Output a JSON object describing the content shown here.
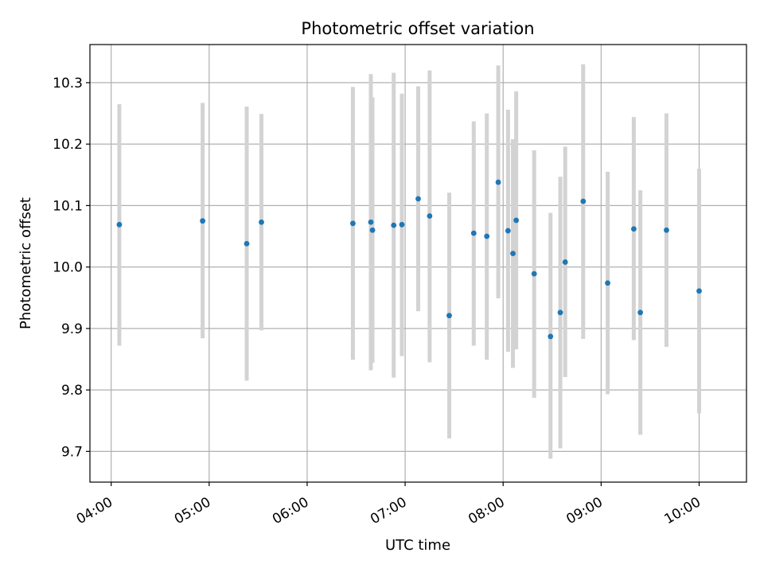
{
  "chart_data": {
    "type": "scatter",
    "title": "Photometric offset variation",
    "xlabel": "UTC time",
    "ylabel": "Photometric offset",
    "x_ticks": [
      "04:00",
      "05:00",
      "06:00",
      "07:00",
      "08:00",
      "09:00",
      "10:00"
    ],
    "y_ticks": [
      "9.7",
      "9.8",
      "9.9",
      "10.0",
      "10.1",
      "10.2",
      "10.3"
    ],
    "xlim": [
      "03:47",
      "10:29"
    ],
    "ylim": [
      9.65,
      10.362
    ],
    "grid": true,
    "marker_color": "#1f77b4",
    "errorbar_color": "#d3d3d3",
    "points": [
      {
        "time": "04:05",
        "y": 10.069,
        "low": 9.872,
        "high": 10.265
      },
      {
        "time": "04:56",
        "y": 10.075,
        "low": 9.884,
        "high": 10.267
      },
      {
        "time": "05:23",
        "y": 10.038,
        "low": 9.815,
        "high": 10.261
      },
      {
        "time": "05:32",
        "y": 10.073,
        "low": 9.897,
        "high": 10.249
      },
      {
        "time": "06:28",
        "y": 10.071,
        "low": 9.849,
        "high": 10.293
      },
      {
        "time": "06:39",
        "y": 10.073,
        "low": 9.832,
        "high": 10.314
      },
      {
        "time": "06:40",
        "y": 10.06,
        "low": 9.844,
        "high": 10.276
      },
      {
        "time": "06:53",
        "y": 10.068,
        "low": 9.82,
        "high": 10.316
      },
      {
        "time": "06:58",
        "y": 10.069,
        "low": 9.855,
        "high": 10.282
      },
      {
        "time": "07:08",
        "y": 10.111,
        "low": 9.928,
        "high": 10.294
      },
      {
        "time": "07:15",
        "y": 10.083,
        "low": 9.845,
        "high": 10.32
      },
      {
        "time": "07:27",
        "y": 9.921,
        "low": 9.721,
        "high": 10.121
      },
      {
        "time": "07:42",
        "y": 10.055,
        "low": 9.872,
        "high": 10.237
      },
      {
        "time": "07:50",
        "y": 10.05,
        "low": 9.849,
        "high": 10.25
      },
      {
        "time": "07:57",
        "y": 10.138,
        "low": 9.949,
        "high": 10.328
      },
      {
        "time": "08:03",
        "y": 10.059,
        "low": 9.862,
        "high": 10.256
      },
      {
        "time": "08:06",
        "y": 10.022,
        "low": 9.836,
        "high": 10.208
      },
      {
        "time": "08:08",
        "y": 10.076,
        "low": 9.866,
        "high": 10.286
      },
      {
        "time": "08:19",
        "y": 9.989,
        "low": 9.787,
        "high": 10.19
      },
      {
        "time": "08:29",
        "y": 9.887,
        "low": 9.688,
        "high": 10.088
      },
      {
        "time": "08:35",
        "y": 9.926,
        "low": 9.705,
        "high": 10.147
      },
      {
        "time": "08:38",
        "y": 10.008,
        "low": 9.821,
        "high": 10.196
      },
      {
        "time": "08:49",
        "y": 10.107,
        "low": 9.883,
        "high": 10.33
      },
      {
        "time": "09:04",
        "y": 9.974,
        "low": 9.793,
        "high": 10.155
      },
      {
        "time": "09:20",
        "y": 10.062,
        "low": 9.881,
        "high": 10.244
      },
      {
        "time": "09:24",
        "y": 9.926,
        "low": 9.727,
        "high": 10.125
      },
      {
        "time": "09:40",
        "y": 10.06,
        "low": 9.87,
        "high": 10.25
      },
      {
        "time": "10:00",
        "y": 9.961,
        "low": 9.762,
        "high": 10.16
      }
    ]
  }
}
